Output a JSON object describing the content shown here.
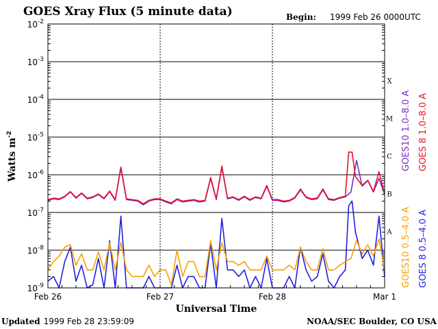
{
  "header": {
    "title": "GOES Xray Flux (5 minute data)",
    "begin_label": "Begin:",
    "begin_value": "1999 Feb 26 0000UTC"
  },
  "footer": {
    "updated_label": "Updated",
    "updated_value": "1999 Feb 28 23:59:09",
    "credit": "NOAA/SEC Boulder, CO USA"
  },
  "colors": {
    "goes10_long": "#7b2bbf",
    "goes8_long": "#e8102a",
    "goes10_short": "#f5a000",
    "goes8_short": "#1f1fe0",
    "axis": "#000000"
  },
  "chart_data": {
    "type": "line",
    "title": "GOES Xray Flux (5 minute data)",
    "xlabel": "Universal Time",
    "ylabel_base": "Watts m",
    "ylabel_sup": "-2",
    "x_unit": "days since 1999 Feb 26 00:00 UT",
    "xlim": [
      0,
      3
    ],
    "y_scale": "log",
    "ylim": [
      1e-09,
      0.01
    ],
    "grid": true,
    "x_ticks": [
      {
        "x": 0,
        "label": "Feb 26"
      },
      {
        "x": 1,
        "label": "Feb 27"
      },
      {
        "x": 2,
        "label": "Feb 28"
      },
      {
        "x": 3,
        "label": "Mar 1"
      }
    ],
    "y_ticks": [
      {
        "exp": -9,
        "base": "10",
        "sup": "-9"
      },
      {
        "exp": -8,
        "base": "10",
        "sup": "-8"
      },
      {
        "exp": -7,
        "base": "10",
        "sup": "-7"
      },
      {
        "exp": -6,
        "base": "10",
        "sup": "-6"
      },
      {
        "exp": -5,
        "base": "10",
        "sup": "-5"
      },
      {
        "exp": -4,
        "base": "10",
        "sup": "-4"
      },
      {
        "exp": -3,
        "base": "10",
        "sup": "-3"
      },
      {
        "exp": -2,
        "base": "10",
        "sup": "-2"
      }
    ],
    "flare_classes": [
      {
        "label": "A",
        "exp": -7.5
      },
      {
        "label": "B",
        "exp": -6.5
      },
      {
        "label": "C",
        "exp": -5.5
      },
      {
        "label": "M",
        "exp": -4.5
      },
      {
        "label": "X",
        "exp": -3.5
      }
    ],
    "legend_right": [
      {
        "text": "GOES10 1.0–8.0 A",
        "color": "#7b2bbf"
      },
      {
        "text": "GOES 8 1.0–8.0 A",
        "color": "#e8102a"
      },
      {
        "text": "GOES10 0.5–4.0 A",
        "color": "#f5a000"
      },
      {
        "text": "GOES 8 0.5–4.0 A",
        "color": "#1f1fe0"
      }
    ],
    "series": [
      {
        "name": "GOES10 1.0-8.0 A",
        "color": "#7b2bbf",
        "x": [
          0,
          0.05,
          0.1,
          0.15,
          0.2,
          0.25,
          0.3,
          0.35,
          0.4,
          0.45,
          0.5,
          0.55,
          0.6,
          0.65,
          0.7,
          0.75,
          0.8,
          0.85,
          0.9,
          0.95,
          1.0,
          1.05,
          1.1,
          1.15,
          1.2,
          1.25,
          1.3,
          1.35,
          1.4,
          1.45,
          1.5,
          1.55,
          1.6,
          1.65,
          1.7,
          1.75,
          1.8,
          1.85,
          1.9,
          1.95,
          2.0,
          2.05,
          2.1,
          2.15,
          2.2,
          2.25,
          2.3,
          2.35,
          2.4,
          2.45,
          2.5,
          2.55,
          2.6,
          2.65,
          2.7,
          2.75,
          2.8,
          2.85,
          2.9,
          2.95,
          3.0
        ],
        "y": [
          2.1e-07,
          2.3e-07,
          2.2e-07,
          2.6e-07,
          3.5e-07,
          2.4e-07,
          3.2e-07,
          2.3e-07,
          2.5e-07,
          3e-07,
          2.3e-07,
          3.6e-07,
          2.1e-07,
          1.5e-06,
          2.2e-07,
          2.1e-07,
          2e-07,
          1.6e-07,
          2e-07,
          2.2e-07,
          2.2e-07,
          1.9e-07,
          1.7e-07,
          2.2e-07,
          1.9e-07,
          2e-07,
          2.1e-07,
          1.9e-07,
          2e-07,
          8e-07,
          2.2e-07,
          1.6e-06,
          2.3e-07,
          2.5e-07,
          2.1e-07,
          2.6e-07,
          2.1e-07,
          2.5e-07,
          2.3e-07,
          5e-07,
          2.1e-07,
          2.1e-07,
          1.9e-07,
          2e-07,
          2.4e-07,
          4e-07,
          2.5e-07,
          2.2e-07,
          2.3e-07,
          4e-07,
          2.2e-07,
          2.1e-07,
          2.4e-07,
          2.6e-07,
          3.5e-07,
          2.4e-06,
          5e-07,
          7e-07,
          3.5e-07,
          8e-07,
          3e-07
        ]
      },
      {
        "name": "GOES 8 1.0-8.0 A",
        "color": "#e8102a",
        "x": [
          0,
          0.05,
          0.1,
          0.15,
          0.2,
          0.25,
          0.3,
          0.35,
          0.4,
          0.45,
          0.5,
          0.55,
          0.6,
          0.65,
          0.7,
          0.75,
          0.8,
          0.85,
          0.9,
          0.95,
          1.0,
          1.05,
          1.1,
          1.15,
          1.2,
          1.25,
          1.3,
          1.35,
          1.4,
          1.45,
          1.5,
          1.55,
          1.6,
          1.65,
          1.7,
          1.75,
          1.8,
          1.85,
          1.9,
          1.95,
          2.0,
          2.05,
          2.1,
          2.15,
          2.2,
          2.25,
          2.3,
          2.35,
          2.4,
          2.45,
          2.5,
          2.55,
          2.6,
          2.65,
          2.68,
          2.71,
          2.74,
          2.8,
          2.85,
          2.9,
          2.95,
          3.0
        ],
        "y": [
          2.2e-07,
          2.4e-07,
          2.3e-07,
          2.7e-07,
          3.6e-07,
          2.5e-07,
          3.3e-07,
          2.4e-07,
          2.6e-07,
          3.1e-07,
          2.4e-07,
          3.7e-07,
          2.2e-07,
          1.6e-06,
          2.3e-07,
          2.2e-07,
          2.1e-07,
          1.7e-07,
          2.1e-07,
          2.3e-07,
          2.3e-07,
          2e-07,
          1.8e-07,
          2.3e-07,
          2e-07,
          2.1e-07,
          2.2e-07,
          2e-07,
          2.1e-07,
          8.5e-07,
          2.3e-07,
          1.7e-06,
          2.4e-07,
          2.6e-07,
          2.2e-07,
          2.7e-07,
          2.2e-07,
          2.6e-07,
          2.4e-07,
          5.2e-07,
          2.2e-07,
          2.2e-07,
          2e-07,
          2.1e-07,
          2.5e-07,
          4.2e-07,
          2.6e-07,
          2.3e-07,
          2.4e-07,
          4.2e-07,
          2.3e-07,
          2.2e-07,
          2.5e-07,
          2.7e-07,
          4e-06,
          4e-06,
          9e-07,
          5.2e-07,
          7.2e-07,
          3.6e-07,
          1.2e-06,
          3.1e-07
        ]
      },
      {
        "name": "GOES10 0.5-4.0 A",
        "color": "#f5a000",
        "x": [
          0,
          0.05,
          0.1,
          0.15,
          0.2,
          0.25,
          0.3,
          0.35,
          0.4,
          0.45,
          0.5,
          0.55,
          0.6,
          0.65,
          0.7,
          0.75,
          0.8,
          0.85,
          0.9,
          0.95,
          1.0,
          1.05,
          1.1,
          1.15,
          1.2,
          1.25,
          1.3,
          1.35,
          1.4,
          1.45,
          1.5,
          1.55,
          1.6,
          1.65,
          1.7,
          1.75,
          1.8,
          1.85,
          1.9,
          1.95,
          2.0,
          2.05,
          2.1,
          2.15,
          2.2,
          2.25,
          2.3,
          2.35,
          2.4,
          2.45,
          2.5,
          2.55,
          2.6,
          2.65,
          2.7,
          2.75,
          2.8,
          2.85,
          2.9,
          2.95,
          3.0
        ],
        "y": [
          3e-09,
          5e-09,
          7e-09,
          1.2e-08,
          1.4e-08,
          4e-09,
          8e-09,
          3e-09,
          3e-09,
          9e-09,
          3e-09,
          1.6e-08,
          3e-09,
          1.6e-08,
          3e-09,
          2e-09,
          2e-09,
          2e-09,
          4e-09,
          2e-09,
          3e-09,
          3e-09,
          1.2e-09,
          1e-08,
          2e-09,
          5e-09,
          5e-09,
          2e-09,
          2e-09,
          1.8e-08,
          3e-09,
          1.6e-08,
          5e-09,
          5e-09,
          4e-09,
          5e-09,
          3e-09,
          3e-09,
          3e-09,
          7e-09,
          3e-09,
          3e-09,
          3e-09,
          4e-09,
          3e-09,
          1.2e-08,
          5e-09,
          3e-09,
          3e-09,
          1.1e-08,
          3e-09,
          3e-09,
          4e-09,
          5e-09,
          6e-09,
          1.8e-08,
          8e-09,
          1.4e-08,
          7e-09,
          2e-08,
          3e-09
        ]
      },
      {
        "name": "GOES 8 0.5-4.0 A",
        "color": "#1f1fe0",
        "x": [
          0,
          0.05,
          0.1,
          0.15,
          0.2,
          0.25,
          0.3,
          0.35,
          0.4,
          0.45,
          0.5,
          0.55,
          0.6,
          0.65,
          0.7,
          0.75,
          0.8,
          0.85,
          0.9,
          0.95,
          1.0,
          1.05,
          1.1,
          1.15,
          1.2,
          1.25,
          1.3,
          1.35,
          1.4,
          1.45,
          1.5,
          1.55,
          1.6,
          1.65,
          1.7,
          1.75,
          1.8,
          1.85,
          1.9,
          1.95,
          2.0,
          2.05,
          2.1,
          2.15,
          2.2,
          2.25,
          2.3,
          2.35,
          2.4,
          2.45,
          2.5,
          2.55,
          2.6,
          2.65,
          2.68,
          2.71,
          2.74,
          2.8,
          2.85,
          2.9,
          2.95,
          3.0
        ],
        "y": [
          1.5e-09,
          2e-09,
          1e-09,
          5e-09,
          1.2e-08,
          1.5e-09,
          4e-09,
          1e-09,
          1.2e-09,
          6e-09,
          1e-09,
          1.8e-08,
          1e-09,
          8e-08,
          1e-09,
          1e-09,
          1e-09,
          1e-09,
          2e-09,
          1e-09,
          1e-09,
          1e-09,
          1e-09,
          4e-09,
          1e-09,
          2e-09,
          2e-09,
          1e-09,
          1e-09,
          1.5e-08,
          1e-09,
          7e-08,
          3e-09,
          3e-09,
          2e-09,
          3e-09,
          1e-09,
          2e-09,
          1e-09,
          6e-09,
          1e-09,
          1e-09,
          1e-09,
          2e-09,
          1e-09,
          1.2e-08,
          3e-09,
          1.5e-09,
          2e-09,
          8e-09,
          1.5e-09,
          1e-09,
          2e-09,
          3e-09,
          1.5e-07,
          2e-07,
          3e-08,
          6e-09,
          1e-08,
          4e-09,
          8e-08,
          2e-09
        ]
      }
    ]
  }
}
